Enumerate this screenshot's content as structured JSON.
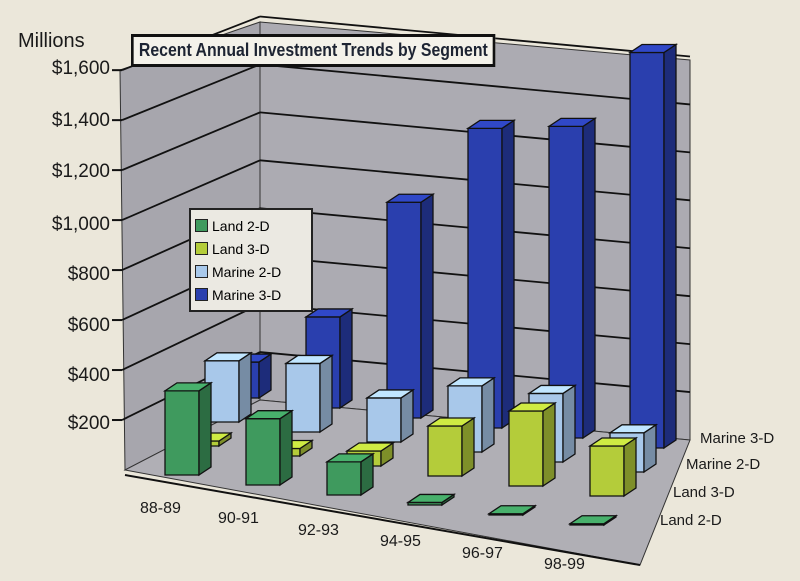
{
  "chart_data": {
    "type": "bar",
    "subtype": "3d-clustered-depth",
    "title": "Recent Annual Investment Trends by Segment",
    "ylabel": "Millions",
    "ylim": [
      0,
      1600
    ],
    "yticks": [
      "$1,600",
      "$1,400",
      "$1,200",
      "$1,000",
      "$800",
      "$600",
      "$400",
      "$200"
    ],
    "categories": [
      "88-89",
      "90-91",
      "92-93",
      "94-95",
      "96-97",
      "98-99"
    ],
    "grid": true,
    "legend_position": "left-center",
    "series": [
      {
        "name": "Land 2-D",
        "color": "#3f9a5e",
        "values": [
          330,
          260,
          130,
          10,
          5,
          5
        ]
      },
      {
        "name": "Land 3-D",
        "color": "#b4cc3a",
        "values": [
          20,
          30,
          60,
          200,
          300,
          200
        ]
      },
      {
        "name": "Marine 2-D",
        "color": "#a8c8ea",
        "values": [
          250,
          280,
          180,
          270,
          280,
          160
        ]
      },
      {
        "name": "Marine 3-D",
        "color": "#2a3fae",
        "values": [
          150,
          380,
          900,
          1250,
          1300,
          1650
        ]
      }
    ],
    "depth_labels": [
      "Marine 3-D",
      "Marine 2-D",
      "Land 3-D",
      "Land 2-D"
    ]
  }
}
